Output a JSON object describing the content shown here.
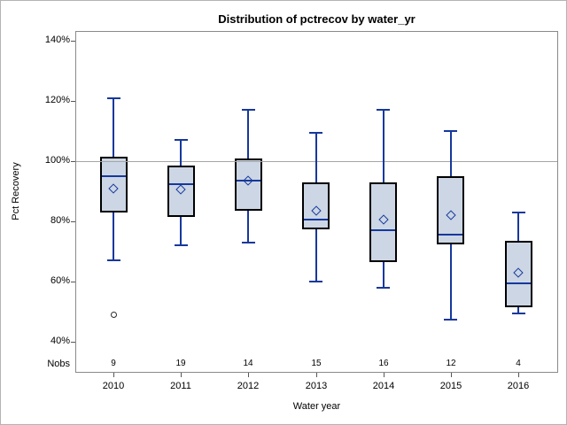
{
  "chart_data": {
    "type": "boxplot",
    "title": "Distribution of pctrecov by water_yr",
    "xlabel": "Water year",
    "ylabel": "Pct Recovery",
    "nobs_label": "Nobs",
    "categories": [
      "2010",
      "2011",
      "2012",
      "2013",
      "2014",
      "2015",
      "2016"
    ],
    "nobs": [
      9,
      19,
      14,
      15,
      16,
      12,
      4
    ],
    "yticks": [
      40,
      60,
      80,
      100,
      120,
      140
    ],
    "ytick_labels": [
      "40%",
      "60%",
      "80%",
      "100%",
      "120%",
      "140%"
    ],
    "ylim": [
      29,
      143
    ],
    "reference_line": 100,
    "grid": false,
    "legend": "none",
    "series": [
      {
        "category": "2010",
        "n": 9,
        "whisker_low": 67,
        "q1": 83,
        "median": 95,
        "q3": 101.5,
        "whisker_high": 121,
        "mean": 91,
        "outliers": [
          49
        ]
      },
      {
        "category": "2011",
        "n": 19,
        "whisker_low": 72,
        "q1": 81.5,
        "median": 92.5,
        "q3": 98.5,
        "whisker_high": 107,
        "mean": 90.5,
        "outliers": []
      },
      {
        "category": "2012",
        "n": 14,
        "whisker_low": 73,
        "q1": 83.5,
        "median": 93.5,
        "q3": 101,
        "whisker_high": 117,
        "mean": 93.5,
        "outliers": []
      },
      {
        "category": "2013",
        "n": 15,
        "whisker_low": 60,
        "q1": 77.5,
        "median": 80.5,
        "q3": 93,
        "whisker_high": 109.5,
        "mean": 83.5,
        "outliers": []
      },
      {
        "category": "2014",
        "n": 16,
        "whisker_low": 58,
        "q1": 66.5,
        "median": 77,
        "q3": 93,
        "whisker_high": 117,
        "mean": 80.5,
        "outliers": []
      },
      {
        "category": "2015",
        "n": 12,
        "whisker_low": 47.5,
        "q1": 72.5,
        "median": 75.5,
        "q3": 95,
        "whisker_high": 110,
        "mean": 82,
        "outliers": []
      },
      {
        "category": "2016",
        "n": 4,
        "whisker_low": 49.5,
        "q1": 51.5,
        "median": 59.5,
        "q3": 73.5,
        "whisker_high": 83,
        "mean": 63,
        "outliers": []
      }
    ],
    "colors": {
      "box_fill": "#ccd6e4",
      "box_border": "#000000",
      "line": "#16389c",
      "reference_line": "#a6a6a6",
      "frame": "#8a8a8a",
      "text": "#000000"
    }
  }
}
